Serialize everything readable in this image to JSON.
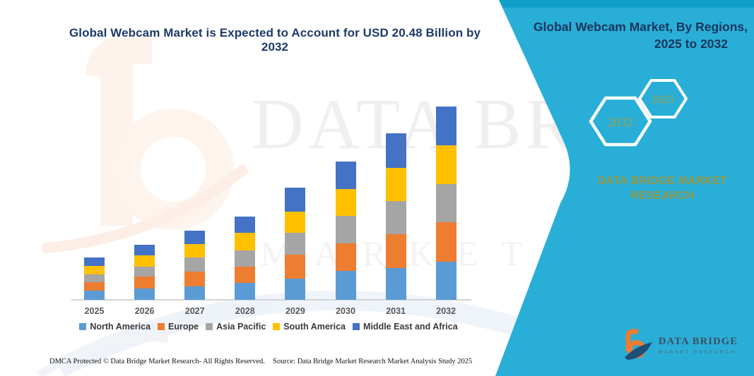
{
  "title": "Global Webcam Market is Expected to Account for USD 20.48 Billion by 2032",
  "sidebar": {
    "heading_line1": "Global Webcam Market, By Regions,",
    "heading_line2": "2025 to 2032",
    "hexagons": {
      "back": "2032",
      "front": "2025"
    },
    "brand_line1": "DATA BRIDGE MARKET",
    "brand_line2": "RESEARCH",
    "accent_color": "#29aed8",
    "accent_dark": "#0f9fc8"
  },
  "logo": {
    "name": "DATA BRIDGE",
    "tagline": "MARKET RESEARCH"
  },
  "watermark": {
    "line1": "DATA BRIDGE",
    "line2": "MARKET RESEARCH"
  },
  "footer": {
    "dmca": "DMCA Protected © Data Bridge Market Research-  All Rights Reserved.",
    "source": "Source: Data Bridge Market Research  Market Analysis Study 2025"
  },
  "chart_data": {
    "type": "bar",
    "stacked": true,
    "title": "Global Webcam Market is Expected to Account for USD 20.48 Billion by 2032",
    "unit": "USD Billion",
    "categories": [
      "2025",
      "2026",
      "2027",
      "2028",
      "2029",
      "2030",
      "2031",
      "2032"
    ],
    "series": [
      {
        "name": "North America",
        "color": "#5b9bd5",
        "values": [
          1.0,
          1.17,
          1.45,
          1.76,
          2.26,
          3.09,
          3.34,
          4.04
        ]
      },
      {
        "name": "Europe",
        "color": "#ed7d31",
        "values": [
          0.88,
          1.33,
          1.51,
          1.76,
          2.56,
          2.89,
          3.64,
          4.21
        ]
      },
      {
        "name": "Asia Pacific",
        "color": "#a5a5a5",
        "values": [
          0.8,
          1.0,
          1.56,
          1.69,
          2.26,
          2.88,
          3.52,
          3.99
        ]
      },
      {
        "name": "South America",
        "color": "#ffc000",
        "values": [
          0.88,
          1.2,
          1.38,
          1.88,
          2.26,
          2.88,
          3.46,
          4.16
        ]
      },
      {
        "name": "Middle East and Africa",
        "color": "#4472c4",
        "values": [
          0.96,
          1.11,
          1.43,
          1.7,
          2.51,
          2.89,
          3.69,
          4.08
        ]
      }
    ],
    "totals": [
      4.52,
      5.81,
      7.33,
      8.79,
      11.85,
      14.63,
      17.65,
      20.48
    ],
    "ylim": [
      0,
      21
    ],
    "gridlines": false,
    "legend_position": "bottom"
  }
}
